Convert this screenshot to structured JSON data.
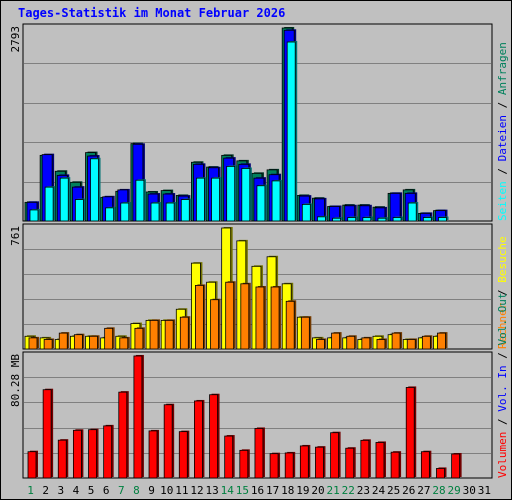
{
  "title": "Tages-Statistik im Monat Februar 2026",
  "colors": {
    "background": "#c0c0c0",
    "title": "#0000ff",
    "anfragen": "#00805c",
    "dateien": "#0000ff",
    "seiten": "#00ffff",
    "besuche": "#ffff00",
    "rechner": "#ff8000",
    "vol_out": "#00805c",
    "vol_in": "#0000ff",
    "volumen": "#ff0000",
    "weekday_label": "#000000",
    "weekend_label": "#008040",
    "grid": "#808080"
  },
  "chart_data": [
    {
      "type": "bar",
      "panel": "requests",
      "max_label": "2793",
      "ylim": [
        0,
        2793
      ],
      "grid": true,
      "categories": [
        "1",
        "2",
        "3",
        "4",
        "5",
        "6",
        "7",
        "8",
        "9",
        "10",
        "11",
        "12",
        "13",
        "14",
        "15",
        "16",
        "17",
        "18",
        "19",
        "20",
        "21",
        "22",
        "23",
        "24",
        "25",
        "26",
        "27",
        "28",
        "29",
        "30",
        "31"
      ],
      "series": [
        {
          "name": "Anfragen",
          "values": [
            270,
            950,
            720,
            560,
            990,
            340,
            430,
            1120,
            420,
            440,
            370,
            850,
            780,
            950,
            870,
            690,
            740,
            2793,
            370,
            330,
            210,
            230,
            230,
            200,
            400,
            450,
            110,
            150,
            0,
            0,
            0
          ]
        },
        {
          "name": "Dateien",
          "values": [
            270,
            960,
            660,
            490,
            940,
            350,
            450,
            1110,
            390,
            390,
            360,
            820,
            770,
            910,
            820,
            620,
            670,
            2760,
            360,
            320,
            210,
            220,
            220,
            190,
            400,
            400,
            110,
            150,
            0,
            0,
            0
          ]
        },
        {
          "name": "Seiten",
          "values": [
            160,
            490,
            620,
            310,
            900,
            190,
            260,
            590,
            260,
            260,
            310,
            620,
            620,
            790,
            760,
            510,
            580,
            2590,
            240,
            60,
            40,
            50,
            50,
            40,
            50,
            260,
            50,
            50,
            0,
            0,
            0
          ]
        }
      ],
      "axis_label_right": [
        "Anfragen",
        "Dateien",
        "Seiten"
      ]
    },
    {
      "type": "bar",
      "panel": "visits",
      "max_label": "761",
      "ylim": [
        0,
        761
      ],
      "grid": true,
      "categories": [
        "1",
        "2",
        "3",
        "4",
        "5",
        "6",
        "7",
        "8",
        "9",
        "10",
        "11",
        "12",
        "13",
        "14",
        "15",
        "16",
        "17",
        "18",
        "19",
        "20",
        "21",
        "22",
        "23",
        "24",
        "25",
        "26",
        "27",
        "28",
        "29",
        "30",
        "31"
      ],
      "series": [
        {
          "name": "Besuche",
          "values": [
            80,
            70,
            60,
            80,
            80,
            70,
            80,
            160,
            180,
            180,
            250,
            540,
            420,
            761,
            680,
            520,
            580,
            410,
            200,
            70,
            70,
            70,
            60,
            80,
            90,
            60,
            70,
            80,
            0,
            0,
            0
          ]
        },
        {
          "name": "Rechner",
          "values": [
            70,
            60,
            100,
            90,
            80,
            130,
            70,
            130,
            180,
            180,
            200,
            400,
            310,
            420,
            410,
            390,
            390,
            300,
            200,
            60,
            100,
            80,
            70,
            60,
            100,
            60,
            80,
            100,
            0,
            0,
            0
          ]
        }
      ],
      "axis_label_right": [
        "Besuche",
        "Rechner"
      ]
    },
    {
      "type": "bar",
      "panel": "volume",
      "max_label": "80.28 MB",
      "ylim": [
        0,
        80.28
      ],
      "grid": true,
      "categories": [
        "1",
        "2",
        "3",
        "4",
        "5",
        "6",
        "7",
        "8",
        "9",
        "10",
        "11",
        "12",
        "13",
        "14",
        "15",
        "16",
        "17",
        "18",
        "19",
        "20",
        "21",
        "22",
        "23",
        "24",
        "25",
        "26",
        "27",
        "28",
        "29",
        "30",
        "31"
      ],
      "series": [
        {
          "name": "Volumen",
          "values": [
            17.3,
            58.1,
            24.9,
            31.4,
            31.8,
            34.3,
            56.5,
            80.3,
            31.0,
            48.2,
            30.5,
            50.7,
            54.8,
            27.6,
            18.2,
            32.6,
            16.0,
            16.5,
            21.1,
            20.3,
            29.8,
            19.6,
            24.8,
            23.4,
            17.0,
            59.6,
            17.3,
            6.3,
            15.8,
            0,
            0
          ]
        }
      ],
      "axis_label_right": [
        "Volumen",
        "Vol. In",
        "Vol. Out"
      ]
    }
  ],
  "weekend_days": [
    "1",
    "7",
    "8",
    "14",
    "15",
    "21",
    "22",
    "28",
    "29"
  ],
  "axis_separator": " / "
}
